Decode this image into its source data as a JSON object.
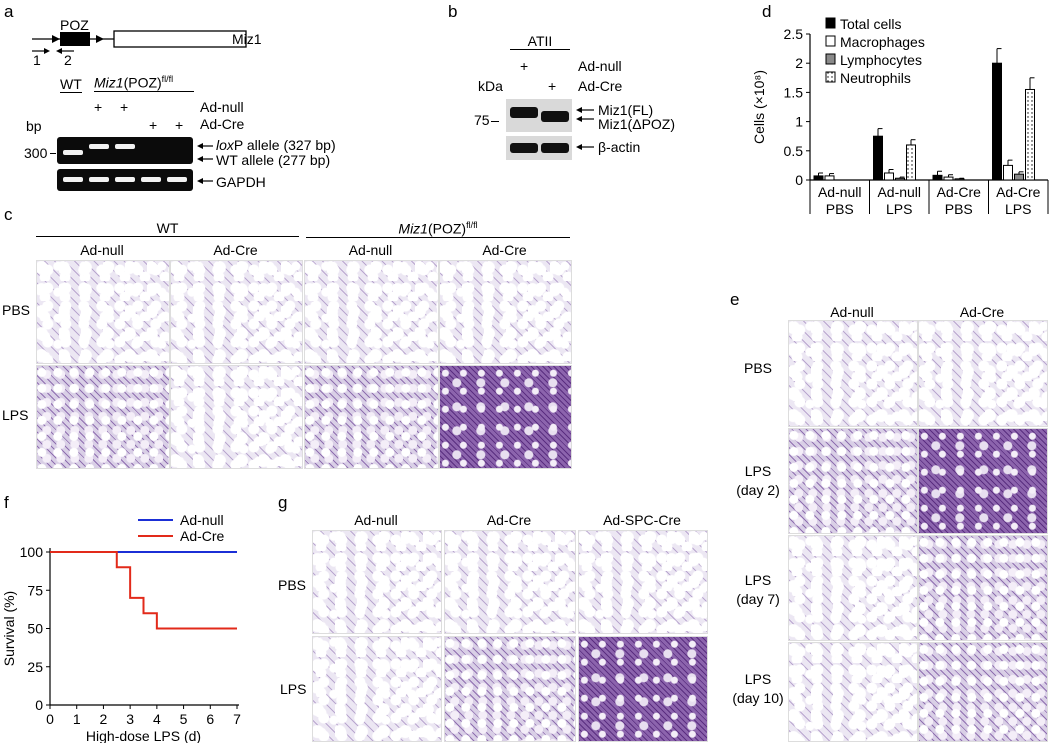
{
  "panel_labels": {
    "a": "a",
    "b": "b",
    "c": "c",
    "d": "d",
    "e": "e",
    "f": "f",
    "g": "g"
  },
  "panel_a": {
    "gene_poz": "POZ",
    "gene_miz1": "Miz1",
    "primer1": "1",
    "primer2": "2",
    "lane_wt": "WT",
    "genotype_prefix": "Miz1",
    "genotype_suffix": "(POZ)",
    "genotype_sup": "fl/fl",
    "plus": "+",
    "row_adnull": "Ad-null",
    "row_adcre": "Ad-Cre",
    "bp_unit": "bp",
    "bp_300": "300",
    "loxp_italic": "lox",
    "loxp_rest": "P allele (327 bp)",
    "wt_allele": "WT allele (277 bp)",
    "gapdh": "GAPDH"
  },
  "panel_b": {
    "atii": "ATII",
    "plus": "+",
    "row_adnull": "Ad-null",
    "row_adcre": "Ad-Cre",
    "kda": "kDa",
    "kda_75": "75",
    "miz1_fl": "Miz1(FL)",
    "miz1_dpoz": "Miz1(ΔPOZ)",
    "beta_actin": "β-actin"
  },
  "panel_c": {
    "group_wt": "WT",
    "group_miz_prefix": "Miz1",
    "group_miz_suffix": "(POZ)",
    "group_miz_sup": "fl/fl",
    "cols": [
      "Ad-null",
      "Ad-Cre",
      "Ad-null",
      "Ad-Cre"
    ],
    "rows": [
      "PBS",
      "LPS"
    ]
  },
  "panel_e": {
    "cols": [
      "Ad-null",
      "Ad-Cre"
    ],
    "rows": [
      [
        "PBS"
      ],
      [
        "LPS",
        "(day 2)"
      ],
      [
        "LPS",
        "(day 7)"
      ],
      [
        "LPS",
        "(day 10)"
      ]
    ]
  },
  "panel_g": {
    "cols": [
      "Ad-null",
      "Ad-Cre",
      "Ad-SPC-Cre"
    ],
    "rows": [
      "PBS",
      "LPS"
    ]
  },
  "chart_data": [
    {
      "panel": "d",
      "type": "bar",
      "ylabel": "Cells (×10⁸)",
      "ylim": [
        0,
        2.5
      ],
      "yticks": [
        "0",
        "0.5",
        "1",
        "1.5",
        "2",
        "2.5"
      ],
      "categories": [
        [
          "Ad-null",
          "PBS"
        ],
        [
          "Ad-null",
          "LPS"
        ],
        [
          "Ad-Cre",
          "PBS"
        ],
        [
          "Ad-Cre",
          "LPS"
        ]
      ],
      "legend_position": "top-left",
      "series": [
        {
          "name": "Total cells",
          "fill": "black",
          "values": [
            0.07,
            0.75,
            0.08,
            2.0
          ],
          "errors": [
            0.05,
            0.13,
            0.07,
            0.25
          ]
        },
        {
          "name": "Macrophages",
          "fill": "white",
          "values": [
            0.07,
            0.12,
            0.05,
            0.25
          ],
          "errors": [
            0.04,
            0.06,
            0.04,
            0.09
          ]
        },
        {
          "name": "Lymphocytes",
          "fill": "gray",
          "values": [
            0.0,
            0.03,
            0.02,
            0.1
          ],
          "errors": [
            0.0,
            0.02,
            0.01,
            0.04
          ]
        },
        {
          "name": "Neutrophils",
          "fill": "dotted",
          "values": [
            0.0,
            0.6,
            0.0,
            1.55
          ],
          "errors": [
            0.0,
            0.09,
            0.0,
            0.2
          ]
        }
      ]
    },
    {
      "panel": "f",
      "type": "line",
      "ylabel": "Survival (%)",
      "xlabel": "High-dose LPS (d)",
      "xlim": [
        0,
        7
      ],
      "ylim": [
        0,
        100
      ],
      "xticks": [
        "0",
        "1",
        "2",
        "3",
        "4",
        "5",
        "6",
        "7"
      ],
      "yticks": [
        "0",
        "25",
        "50",
        "75",
        "100"
      ],
      "colors": {
        "Ad-null": "#1b2fd6",
        "Ad-Cre": "#e22a1a"
      },
      "series": [
        {
          "name": "Ad-null",
          "x": [
            0,
            7
          ],
          "y": [
            100,
            100
          ]
        },
        {
          "name": "Ad-Cre",
          "x": [
            0,
            2.5,
            2.5,
            3,
            3,
            3.5,
            3.5,
            4,
            4,
            7
          ],
          "y": [
            100,
            100,
            90,
            90,
            70,
            70,
            60,
            60,
            50,
            50
          ]
        }
      ]
    }
  ]
}
